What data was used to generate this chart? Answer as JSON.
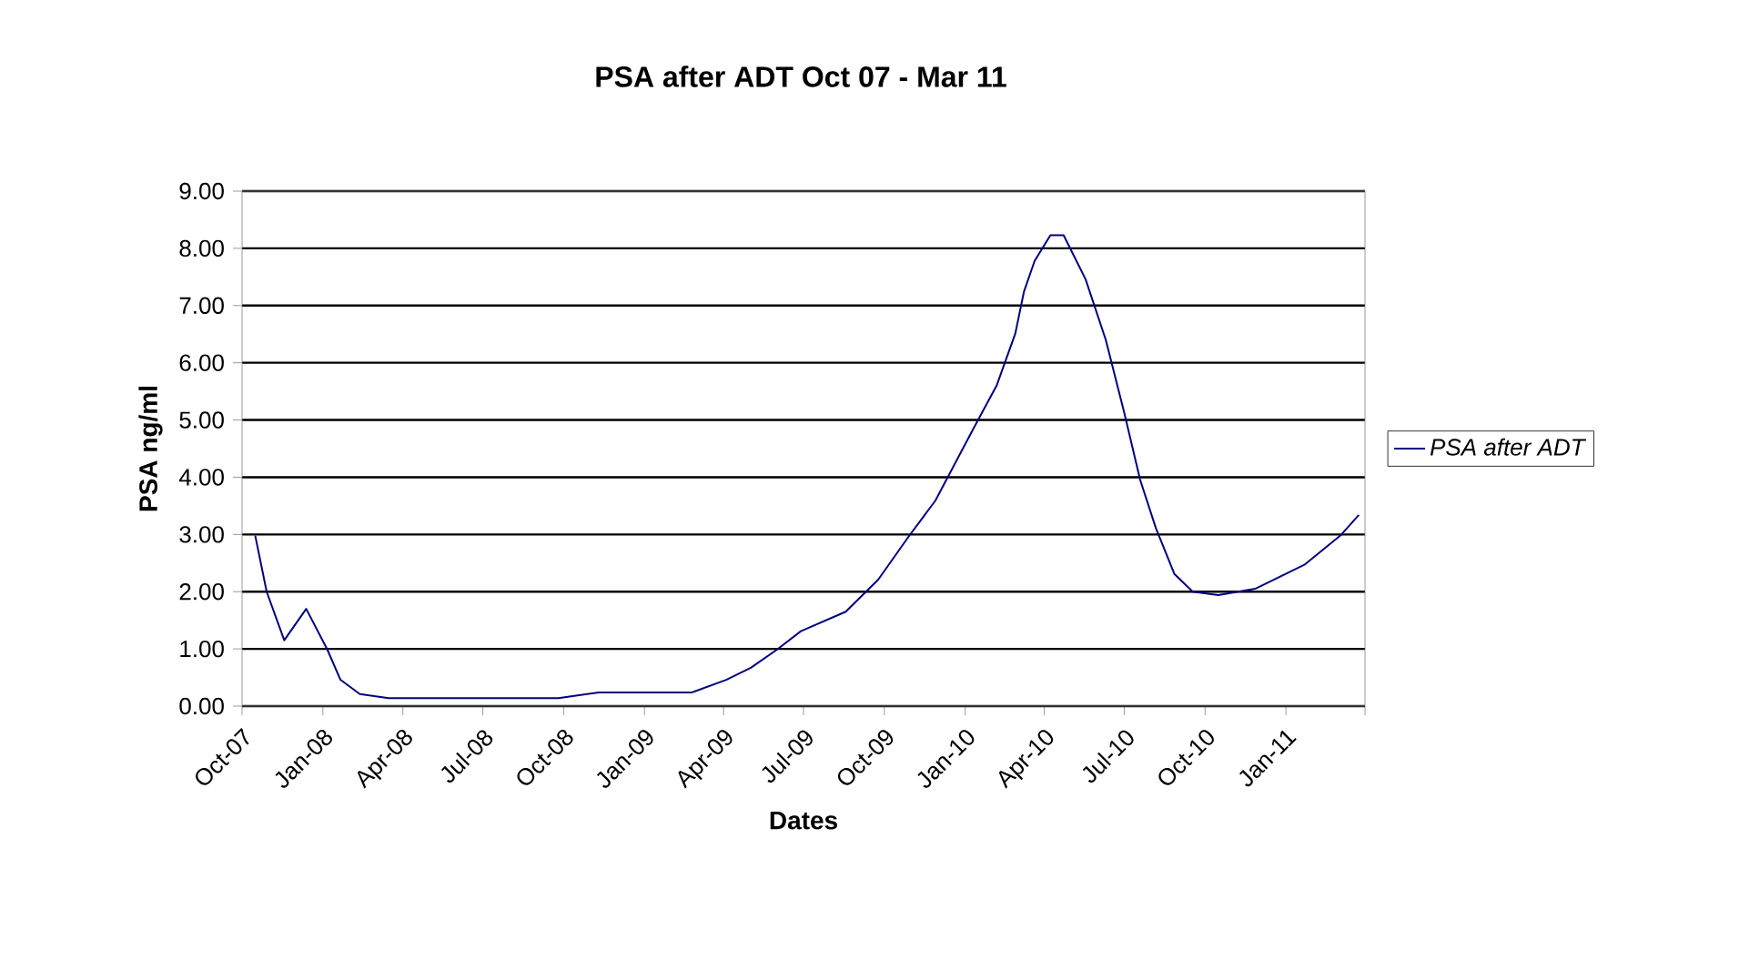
{
  "chart_data": {
    "type": "line",
    "title": "PSA after ADT Oct 07 - Mar 11",
    "xlabel": "Dates",
    "ylabel": "PSA ng/ml",
    "x": [
      "2007-10-16",
      "2007-10-29",
      "2007-11-18",
      "2007-12-13",
      "2008-01-06",
      "2008-01-21",
      "2008-02-12",
      "2008-03-16",
      "2008-09-25",
      "2008-11-10",
      "2009-02-24",
      "2009-04-04",
      "2009-05-02",
      "2009-06-01",
      "2009-06-28",
      "2009-08-18",
      "2009-09-24",
      "2009-10-28",
      "2009-11-28",
      "2010-01-09",
      "2010-02-06",
      "2010-02-27",
      "2010-03-09",
      "2010-03-21",
      "2010-04-08",
      "2010-04-23",
      "2010-05-18",
      "2010-06-10",
      "2010-07-01",
      "2010-07-19",
      "2010-08-06",
      "2010-08-27",
      "2010-09-17",
      "2010-10-16",
      "2010-11-27",
      "2011-01-22",
      "2011-03-04",
      "2011-03-25"
    ],
    "series": [
      {
        "name": "PSA after ADT",
        "color": "#000080",
        "values": [
          2.98,
          2.0,
          1.15,
          1.7,
          0.99,
          0.46,
          0.21,
          0.14,
          0.14,
          0.24,
          0.24,
          0.46,
          0.67,
          0.99,
          1.31,
          1.65,
          2.21,
          2.95,
          3.59,
          4.81,
          5.61,
          6.51,
          7.25,
          7.78,
          8.23,
          8.23,
          7.46,
          6.4,
          5.13,
          3.96,
          3.11,
          2.31,
          2.0,
          1.94,
          2.05,
          2.47,
          2.98,
          3.34
        ]
      }
    ],
    "xlim": [
      "2007-10-01",
      "2011-04-01"
    ],
    "xticks": [
      {
        "value": "2007-10-01",
        "label": "Oct-07"
      },
      {
        "value": "2008-01-01",
        "label": "Jan-08"
      },
      {
        "value": "2008-04-01",
        "label": "Apr-08"
      },
      {
        "value": "2008-07-01",
        "label": "Jul-08"
      },
      {
        "value": "2008-10-01",
        "label": "Oct-08"
      },
      {
        "value": "2009-01-01",
        "label": "Jan-09"
      },
      {
        "value": "2009-04-01",
        "label": "Apr-09"
      },
      {
        "value": "2009-07-01",
        "label": "Jul-09"
      },
      {
        "value": "2009-10-01",
        "label": "Oct-09"
      },
      {
        "value": "2010-01-01",
        "label": "Jan-10"
      },
      {
        "value": "2010-04-01",
        "label": "Apr-10"
      },
      {
        "value": "2010-07-01",
        "label": "Jul-10"
      },
      {
        "value": "2010-10-01",
        "label": "Oct-10"
      },
      {
        "value": "2011-01-01",
        "label": "Jan-11"
      },
      {
        "value": "2011-04-01",
        "label": null
      }
    ],
    "ylim": [
      0,
      9
    ],
    "yticks": [
      {
        "value": 0,
        "label": "0.00"
      },
      {
        "value": 1,
        "label": "1.00"
      },
      {
        "value": 2,
        "label": "2.00"
      },
      {
        "value": 3,
        "label": "3.00"
      },
      {
        "value": 4,
        "label": "4.00"
      },
      {
        "value": 5,
        "label": "5.00"
      },
      {
        "value": 6,
        "label": "6.00"
      },
      {
        "value": 7,
        "label": "7.00"
      },
      {
        "value": 8,
        "label": "8.00"
      },
      {
        "value": 9,
        "label": "9.00"
      }
    ],
    "grid": "y",
    "legend": "right",
    "marker": "none",
    "line_style": "solid"
  }
}
